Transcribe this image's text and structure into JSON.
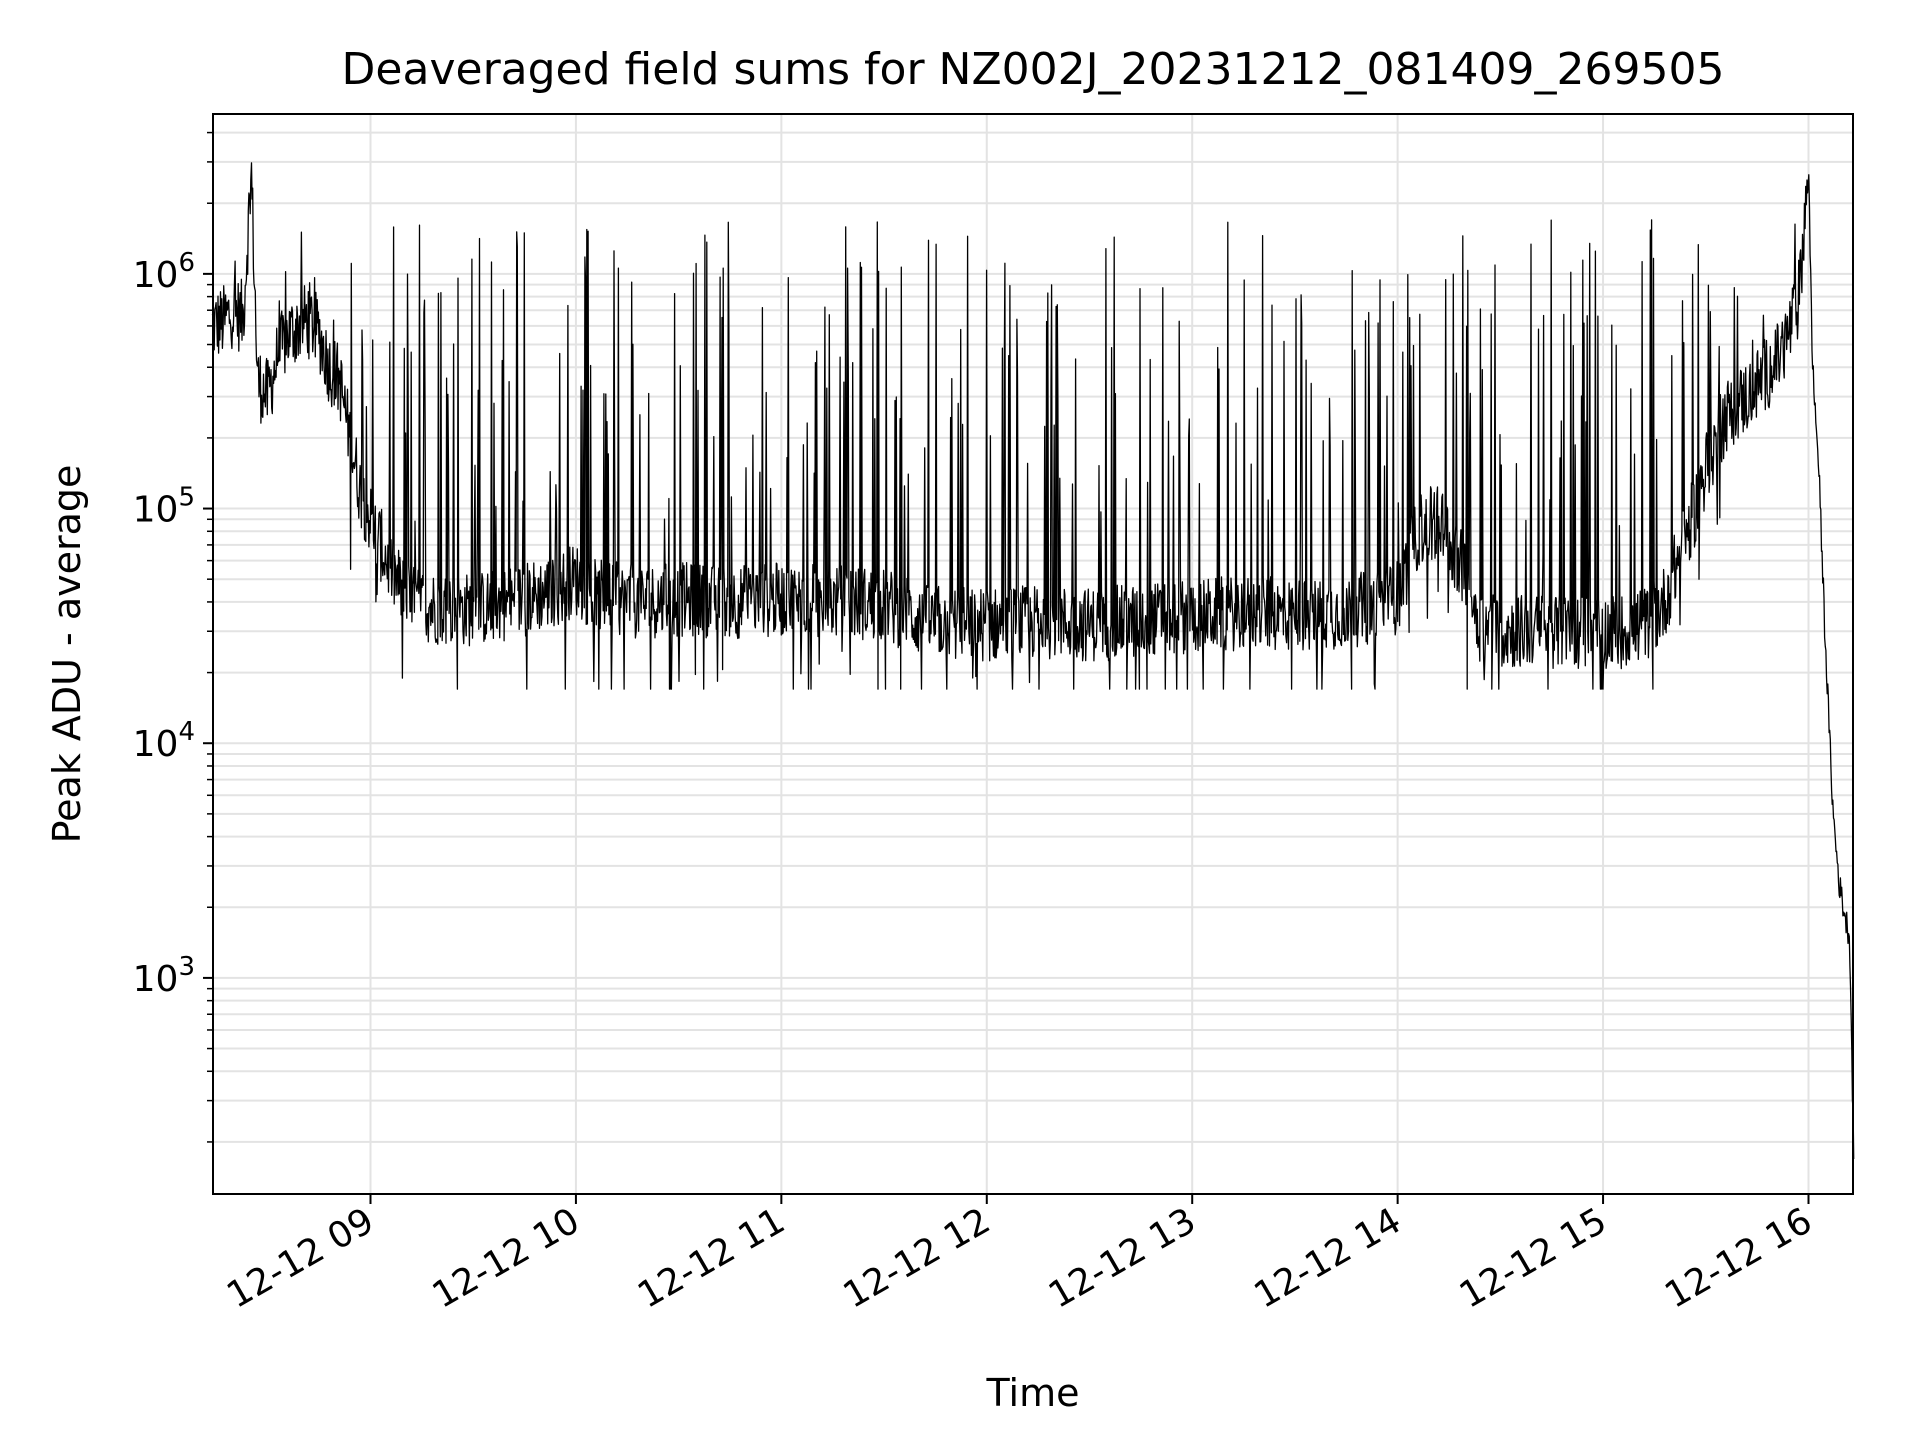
{
  "chart_data": {
    "type": "line",
    "title": "Deaveraged field sums for NZ002J_20231212_081409_269505",
    "xlabel": "Time",
    "ylabel": "Peak ADU - average",
    "yscale": "log",
    "grid": "both (major and minor, light gray)",
    "line_color": "#000000",
    "x_ticks": [
      "12-12 09",
      "12-12 10",
      "12-12 11",
      "12-12 12",
      "12-12 13",
      "12-12 14",
      "12-12 15",
      "12-12 16"
    ],
    "y_ticks": [
      {
        "value": 1000,
        "base": "10",
        "exp": "3"
      },
      {
        "value": 10000,
        "base": "10",
        "exp": "4"
      },
      {
        "value": 100000,
        "base": "10",
        "exp": "5"
      },
      {
        "value": 1000000,
        "base": "10",
        "exp": "6"
      }
    ],
    "xlim": [
      "2023-12-12 08:14",
      "2023-12-12 16:13"
    ],
    "ylim": [
      120,
      4800000
    ],
    "series": [
      {
        "x_hours": [
          8.23,
          8.28,
          8.33,
          8.38,
          8.42,
          8.45,
          8.5,
          8.55,
          8.6,
          8.65,
          8.7,
          8.75,
          8.8,
          8.85,
          8.9,
          8.95,
          9.0,
          9.05,
          9.1,
          9.15,
          9.2,
          9.3,
          9.5,
          9.7,
          9.9,
          10.0,
          10.1,
          10.3,
          10.5,
          10.8,
          11.0,
          11.3,
          11.5,
          11.7,
          12.0,
          12.3,
          12.5,
          12.7,
          13.0,
          13.3,
          13.5,
          13.7,
          13.9,
          14.0,
          14.1,
          14.2,
          14.3,
          14.4,
          14.5,
          14.7,
          14.9,
          15.1,
          15.2,
          15.25,
          15.3,
          15.35,
          15.4,
          15.45,
          15.5,
          15.6,
          15.7,
          15.8,
          15.85,
          15.9,
          15.95,
          16.0,
          16.02,
          16.05,
          16.08,
          16.1,
          16.12,
          16.15,
          16.18,
          16.2,
          16.22
        ],
        "y_baseline": [
          600000,
          620000,
          700000,
          650000,
          2700000,
          350000,
          300000,
          450000,
          550000,
          600000,
          650000,
          550000,
          400000,
          350000,
          200000,
          120000,
          90000,
          70000,
          55000,
          45000,
          40000,
          38000,
          37000,
          40000,
          45000,
          50000,
          42000,
          40000,
          41000,
          40000,
          41000,
          40000,
          39000,
          33000,
          32000,
          33000,
          32000,
          33000,
          35000,
          36000,
          35000,
          36000,
          38000,
          42000,
          80000,
          90000,
          60000,
          32000,
          30000,
          30000,
          30000,
          30000,
          32000,
          35000,
          40000,
          55000,
          75000,
          100000,
          150000,
          250000,
          300000,
          380000,
          430000,
          550000,
          750000,
          2800000,
          400000,
          150000,
          30000,
          12000,
          5000,
          2500,
          1800,
          1500,
          180
        ],
        "spike_peak_range": [
          300000,
          1700000
        ],
        "spike_floor": 17000
      }
    ]
  }
}
